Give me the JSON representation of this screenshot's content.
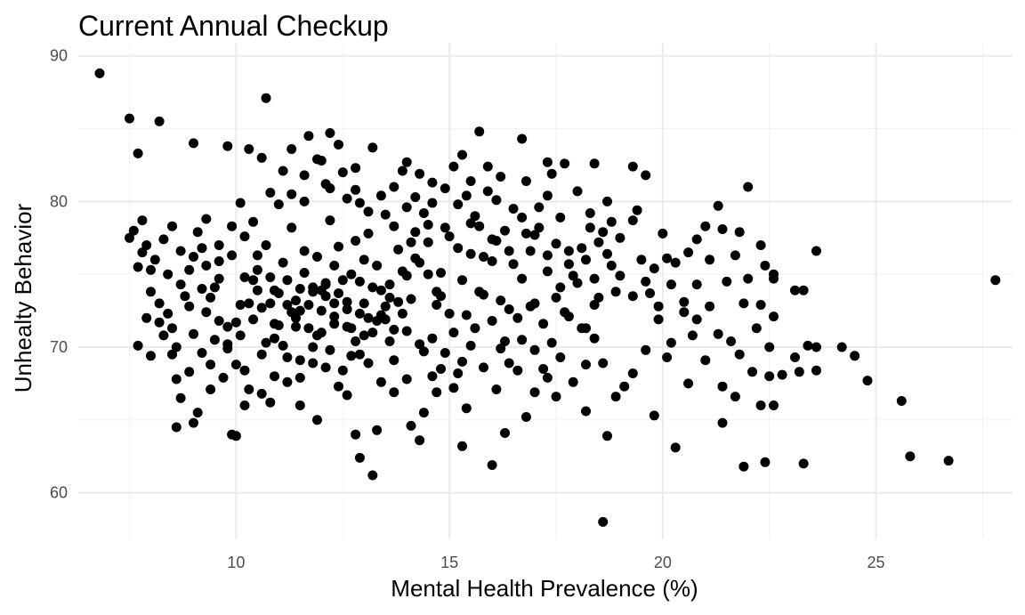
{
  "chart_data": {
    "type": "scatter",
    "title": "Current Annual Checkup",
    "xlabel": "Mental Health Prevalence (%)",
    "ylabel": "Unhealty Behavior",
    "xlim": [
      6.3,
      28.2
    ],
    "ylim": [
      56.8,
      90.9
    ],
    "x_ticks": [
      10,
      15,
      20,
      25
    ],
    "y_ticks": [
      60,
      70,
      80,
      90
    ],
    "x_tick_labels": [
      "10",
      "15",
      "20",
      "25"
    ],
    "y_tick_labels": [
      "60",
      "70",
      "80",
      "90"
    ],
    "grid": true,
    "legend": "none",
    "point_color": "#000000",
    "points": [
      [
        6.8,
        88.8
      ],
      [
        10.7,
        87.1
      ],
      [
        7.5,
        85.7
      ],
      [
        8.2,
        85.5
      ],
      [
        7.7,
        83.3
      ],
      [
        9.0,
        84.0
      ],
      [
        9.8,
        83.8
      ],
      [
        10.3,
        83.6
      ],
      [
        11.7,
        84.5
      ],
      [
        12.2,
        84.7
      ],
      [
        12.4,
        83.9
      ],
      [
        13.2,
        83.7
      ],
      [
        15.7,
        84.8
      ],
      [
        16.7,
        84.3
      ],
      [
        19.3,
        82.4
      ],
      [
        22.0,
        81.0
      ],
      [
        19.6,
        81.8
      ],
      [
        18.4,
        82.6
      ],
      [
        17.3,
        82.7
      ],
      [
        15.3,
        83.2
      ],
      [
        14.0,
        82.7
      ],
      [
        7.5,
        77.5
      ],
      [
        7.6,
        78.0
      ],
      [
        7.8,
        76.5
      ],
      [
        7.7,
        75.5
      ],
      [
        8.0,
        73.8
      ],
      [
        7.9,
        72.0
      ],
      [
        8.3,
        70.8
      ],
      [
        7.7,
        70.1
      ],
      [
        8.5,
        69.5
      ],
      [
        8.6,
        67.8
      ],
      [
        8.7,
        66.5
      ],
      [
        8.6,
        64.5
      ],
      [
        9.1,
        65.5
      ],
      [
        9.0,
        64.8
      ],
      [
        9.4,
        67.1
      ],
      [
        9.9,
        64.0
      ],
      [
        10.0,
        63.9
      ],
      [
        10.2,
        66.0
      ],
      [
        10.8,
        66.2
      ],
      [
        11.5,
        66.0
      ],
      [
        11.9,
        65.0
      ],
      [
        12.6,
        66.7
      ],
      [
        12.8,
        64.0
      ],
      [
        12.9,
        62.4
      ],
      [
        13.2,
        61.2
      ],
      [
        13.3,
        64.3
      ],
      [
        13.7,
        66.9
      ],
      [
        14.1,
        64.6
      ],
      [
        14.3,
        63.6
      ],
      [
        14.4,
        65.5
      ],
      [
        14.7,
        66.9
      ],
      [
        15.3,
        63.2
      ],
      [
        15.4,
        65.8
      ],
      [
        16.0,
        61.9
      ],
      [
        16.3,
        64.1
      ],
      [
        16.8,
        65.2
      ],
      [
        17.5,
        66.6
      ],
      [
        18.2,
        65.6
      ],
      [
        18.6,
        58.0
      ],
      [
        18.7,
        63.9
      ],
      [
        19.1,
        67.3
      ],
      [
        19.8,
        65.3
      ],
      [
        20.3,
        63.1
      ],
      [
        21.4,
        64.8
      ],
      [
        21.9,
        61.8
      ],
      [
        22.4,
        62.1
      ],
      [
        23.3,
        62.0
      ],
      [
        25.8,
        62.5
      ],
      [
        26.7,
        62.2
      ],
      [
        25.6,
        66.3
      ],
      [
        24.8,
        67.7
      ],
      [
        24.5,
        69.4
      ],
      [
        24.2,
        70.0
      ],
      [
        23.6,
        70.0
      ],
      [
        23.4,
        70.1
      ],
      [
        23.1,
        69.3
      ],
      [
        23.2,
        68.3
      ],
      [
        22.8,
        68.1
      ],
      [
        22.5,
        68.0
      ],
      [
        22.1,
        68.3
      ],
      [
        21.7,
        66.6
      ],
      [
        21.4,
        67.3
      ],
      [
        22.3,
        66.0
      ],
      [
        22.6,
        66.0
      ],
      [
        23.6,
        68.4
      ],
      [
        27.8,
        74.6
      ],
      [
        23.6,
        76.6
      ],
      [
        23.1,
        73.9
      ],
      [
        23.3,
        73.9
      ],
      [
        22.6,
        74.7
      ],
      [
        22.4,
        75.6
      ],
      [
        22.6,
        75.0
      ],
      [
        22.3,
        77.0
      ],
      [
        21.8,
        77.9
      ],
      [
        21.3,
        79.7
      ],
      [
        21.0,
        78.3
      ],
      [
        20.8,
        77.4
      ],
      [
        20.1,
        76.1
      ],
      [
        20.6,
        76.5
      ],
      [
        19.8,
        75.4
      ],
      [
        8.4,
        75.0
      ],
      [
        8.8,
        73.5
      ],
      [
        9.2,
        76.8
      ],
      [
        9.6,
        75.9
      ],
      [
        9.3,
        72.4
      ],
      [
        9.0,
        70.9
      ],
      [
        8.9,
        72.8
      ],
      [
        8.5,
        71.3
      ],
      [
        8.2,
        73.0
      ],
      [
        8.0,
        75.3
      ],
      [
        9.5,
        74.1
      ],
      [
        9.8,
        70.2
      ],
      [
        10.1,
        72.9
      ],
      [
        10.5,
        75.3
      ],
      [
        10.3,
        73.0
      ],
      [
        10.0,
        71.7
      ],
      [
        10.9,
        73.9
      ],
      [
        11.0,
        71.5
      ],
      [
        11.2,
        74.6
      ],
      [
        11.4,
        73.2
      ],
      [
        11.1,
        75.8
      ],
      [
        10.7,
        77.0
      ],
      [
        10.4,
        78.6
      ],
      [
        10.1,
        79.9
      ],
      [
        10.8,
        80.6
      ],
      [
        11.3,
        78.2
      ],
      [
        11.6,
        76.6
      ],
      [
        11.8,
        74.1
      ],
      [
        11.5,
        72.5
      ],
      [
        11.9,
        70.8
      ],
      [
        12.1,
        73.5
      ],
      [
        12.3,
        72.1
      ],
      [
        12.0,
        71.0
      ],
      [
        12.5,
        74.6
      ],
      [
        12.4,
        76.9
      ],
      [
        12.2,
        78.7
      ],
      [
        12.6,
        80.2
      ],
      [
        12.8,
        82.3
      ],
      [
        12.1,
        81.2
      ],
      [
        11.6,
        80.0
      ],
      [
        11.1,
        82.1
      ],
      [
        10.6,
        83.0
      ],
      [
        11.3,
        83.6
      ],
      [
        12.0,
        82.8
      ],
      [
        12.9,
        79.9
      ],
      [
        13.1,
        77.8
      ],
      [
        13.3,
        75.6
      ],
      [
        13.0,
        73.0
      ],
      [
        12.7,
        71.3
      ],
      [
        12.9,
        69.5
      ],
      [
        13.4,
        72.2
      ],
      [
        13.6,
        74.3
      ],
      [
        13.8,
        76.7
      ],
      [
        13.5,
        79.1
      ],
      [
        13.7,
        81.0
      ],
      [
        13.9,
        82.1
      ],
      [
        14.2,
        80.3
      ],
      [
        14.5,
        78.4
      ],
      [
        14.3,
        75.8
      ],
      [
        14.1,
        73.3
      ],
      [
        14.0,
        71.1
      ],
      [
        14.4,
        69.7
      ],
      [
        14.7,
        72.9
      ],
      [
        14.8,
        75.1
      ],
      [
        15.0,
        77.6
      ],
      [
        15.2,
        79.8
      ],
      [
        15.5,
        81.4
      ],
      [
        15.9,
        82.4
      ],
      [
        16.1,
        80.1
      ],
      [
        16.3,
        78.0
      ],
      [
        16.0,
        75.9
      ],
      [
        15.8,
        73.6
      ],
      [
        15.6,
        71.3
      ],
      [
        15.3,
        69.0
      ],
      [
        15.1,
        67.2
      ],
      [
        14.8,
        68.5
      ],
      [
        14.6,
        70.6
      ],
      [
        16.4,
        72.6
      ],
      [
        16.7,
        74.7
      ],
      [
        16.9,
        76.6
      ],
      [
        17.1,
        78.2
      ],
      [
        17.3,
        80.4
      ],
      [
        17.6,
        78.9
      ],
      [
        17.8,
        76.6
      ],
      [
        18.0,
        74.4
      ],
      [
        17.7,
        72.4
      ],
      [
        17.4,
        70.3
      ],
      [
        17.2,
        68.5
      ],
      [
        17.0,
        66.9
      ],
      [
        16.6,
        68.4
      ],
      [
        16.2,
        69.9
      ],
      [
        18.2,
        71.3
      ],
      [
        18.5,
        73.4
      ],
      [
        18.8,
        75.6
      ],
      [
        19.0,
        77.5
      ],
      [
        19.3,
        78.7
      ],
      [
        18.7,
        80.0
      ],
      [
        18.3,
        79.2
      ],
      [
        19.5,
        76.0
      ],
      [
        19.7,
        73.7
      ],
      [
        19.9,
        71.9
      ],
      [
        19.6,
        69.8
      ],
      [
        19.3,
        68.2
      ],
      [
        18.9,
        66.6
      ],
      [
        18.6,
        68.9
      ],
      [
        18.4,
        70.6
      ],
      [
        20.2,
        70.3
      ],
      [
        20.5,
        72.4
      ],
      [
        20.8,
        74.3
      ],
      [
        20.3,
        75.8
      ],
      [
        20.0,
        77.8
      ],
      [
        19.4,
        79.4
      ],
      [
        20.7,
        70.8
      ],
      [
        21.1,
        72.8
      ],
      [
        21.5,
        74.5
      ],
      [
        21.9,
        73.0
      ],
      [
        21.3,
        70.9
      ],
      [
        21.0,
        69.1
      ],
      [
        20.6,
        67.5
      ],
      [
        20.1,
        69.3
      ],
      [
        21.6,
        70.4
      ],
      [
        22.2,
        71.3
      ],
      [
        22.5,
        70.0
      ],
      [
        21.8,
        69.5
      ],
      [
        9.4,
        68.8
      ],
      [
        9.7,
        67.9
      ],
      [
        10.2,
        68.4
      ],
      [
        10.6,
        69.5
      ],
      [
        10.9,
        70.6
      ],
      [
        11.2,
        69.3
      ],
      [
        11.5,
        67.9
      ],
      [
        11.8,
        68.9
      ],
      [
        12.2,
        69.8
      ],
      [
        12.5,
        68.4
      ],
      [
        12.8,
        70.4
      ],
      [
        13.1,
        68.9
      ],
      [
        13.4,
        67.6
      ],
      [
        13.7,
        69.1
      ],
      [
        14.0,
        67.8
      ],
      [
        14.3,
        70.2
      ],
      [
        14.6,
        68.0
      ],
      [
        14.9,
        69.6
      ],
      [
        15.2,
        68.2
      ],
      [
        15.5,
        70.1
      ],
      [
        15.8,
        68.6
      ],
      [
        16.1,
        67.1
      ],
      [
        16.4,
        68.9
      ],
      [
        16.7,
        70.5
      ],
      [
        17.0,
        69.8
      ],
      [
        17.3,
        67.9
      ],
      [
        17.6,
        69.3
      ],
      [
        17.9,
        67.6
      ],
      [
        18.2,
        68.8
      ],
      [
        10.5,
        76.3
      ],
      [
        10.8,
        74.8
      ],
      [
        11.0,
        73.7
      ],
      [
        11.3,
        72.4
      ],
      [
        11.6,
        75.1
      ],
      [
        11.9,
        76.2
      ],
      [
        12.1,
        74.4
      ],
      [
        12.3,
        75.6
      ],
      [
        12.6,
        73.1
      ],
      [
        12.8,
        77.3
      ],
      [
        13.0,
        76.0
      ],
      [
        13.2,
        74.1
      ],
      [
        13.5,
        72.8
      ],
      [
        13.7,
        71.2
      ],
      [
        14.0,
        74.9
      ],
      [
        14.2,
        76.1
      ],
      [
        14.5,
        77.2
      ],
      [
        14.7,
        73.8
      ],
      [
        15.0,
        72.3
      ],
      [
        15.3,
        74.6
      ],
      [
        15.5,
        76.4
      ],
      [
        15.7,
        78.3
      ],
      [
        16.0,
        77.4
      ],
      [
        16.2,
        73.2
      ],
      [
        16.5,
        75.7
      ],
      [
        16.8,
        77.8
      ],
      [
        17.0,
        73.0
      ],
      [
        17.3,
        75.2
      ],
      [
        17.5,
        77.1
      ],
      [
        17.8,
        75.7
      ],
      [
        18.1,
        76.8
      ],
      [
        18.4,
        72.9
      ],
      [
        18.6,
        77.9
      ],
      [
        18.9,
        73.8
      ],
      [
        9.1,
        77.9
      ],
      [
        9.3,
        78.8
      ],
      [
        9.6,
        77.0
      ],
      [
        9.9,
        78.3
      ],
      [
        10.2,
        77.6
      ],
      [
        10.4,
        74.6
      ],
      [
        10.6,
        72.7
      ],
      [
        10.9,
        71.6
      ],
      [
        11.1,
        70.1
      ],
      [
        11.4,
        71.4
      ],
      [
        11.7,
        72.9
      ],
      [
        12.0,
        73.9
      ],
      [
        12.3,
        71.6
      ],
      [
        12.6,
        72.6
      ],
      [
        12.9,
        74.5
      ],
      [
        13.1,
        72.0
      ],
      [
        13.4,
        73.9
      ],
      [
        13.6,
        70.4
      ],
      [
        13.9,
        72.3
      ],
      [
        14.1,
        77.2
      ],
      [
        14.4,
        79.2
      ],
      [
        14.6,
        81.3
      ],
      [
        14.9,
        80.9
      ],
      [
        15.1,
        82.4
      ],
      [
        15.4,
        80.4
      ],
      [
        15.6,
        79.0
      ],
      [
        15.9,
        80.7
      ],
      [
        16.2,
        81.7
      ],
      [
        16.5,
        79.5
      ],
      [
        16.8,
        81.4
      ],
      [
        17.1,
        79.6
      ],
      [
        17.4,
        81.9
      ],
      [
        17.7,
        82.6
      ],
      [
        18.0,
        80.7
      ],
      [
        18.3,
        78.2
      ],
      [
        7.8,
        78.7
      ],
      [
        7.9,
        77.0
      ],
      [
        8.1,
        76.0
      ],
      [
        8.3,
        77.4
      ],
      [
        8.5,
        78.3
      ],
      [
        8.7,
        76.6
      ],
      [
        8.9,
        75.3
      ],
      [
        9.2,
        74.0
      ],
      [
        9.4,
        73.4
      ],
      [
        9.6,
        71.8
      ],
      [
        9.8,
        69.9
      ],
      [
        10.0,
        68.8
      ],
      [
        10.3,
        67.1
      ],
      [
        10.6,
        66.8
      ],
      [
        10.9,
        68.0
      ],
      [
        11.2,
        67.6
      ],
      [
        11.5,
        69.1
      ],
      [
        11.8,
        70.0
      ],
      [
        12.1,
        68.6
      ],
      [
        12.4,
        67.3
      ],
      [
        12.7,
        69.4
      ],
      [
        13.0,
        70.8
      ],
      [
        13.3,
        71.8
      ],
      [
        13.6,
        73.4
      ],
      [
        13.9,
        75.2
      ],
      [
        14.2,
        77.9
      ],
      [
        14.5,
        75.0
      ],
      [
        14.8,
        73.5
      ],
      [
        15.1,
        71.0
      ],
      [
        15.4,
        72.2
      ],
      [
        15.7,
        73.8
      ],
      [
        16.0,
        71.8
      ],
      [
        16.3,
        70.4
      ],
      [
        16.6,
        72.0
      ],
      [
        16.9,
        72.8
      ],
      [
        17.2,
        71.6
      ],
      [
        17.5,
        73.4
      ],
      [
        17.8,
        72.1
      ],
      [
        18.1,
        71.3
      ],
      [
        18.4,
        74.7
      ],
      [
        18.7,
        76.4
      ],
      [
        19.0,
        74.9
      ],
      [
        19.3,
        73.5
      ],
      [
        19.6,
        74.5
      ],
      [
        19.9,
        72.8
      ],
      [
        20.2,
        74.3
      ],
      [
        20.5,
        73.1
      ],
      [
        20.8,
        71.9
      ],
      [
        21.1,
        76.0
      ],
      [
        21.4,
        78.1
      ],
      [
        21.7,
        76.3
      ],
      [
        22.0,
        74.7
      ],
      [
        22.3,
        72.9
      ],
      [
        22.6,
        72.1
      ],
      [
        11.0,
        79.8
      ],
      [
        11.3,
        80.5
      ],
      [
        11.6,
        81.8
      ],
      [
        11.9,
        82.9
      ],
      [
        12.2,
        80.9
      ],
      [
        12.5,
        82.0
      ],
      [
        12.8,
        80.8
      ],
      [
        13.1,
        79.3
      ],
      [
        13.4,
        80.4
      ],
      [
        13.7,
        78.3
      ],
      [
        14.0,
        79.6
      ],
      [
        14.3,
        81.9
      ],
      [
        14.6,
        79.9
      ],
      [
        14.9,
        78.2
      ],
      [
        15.2,
        76.8
      ],
      [
        15.5,
        78.5
      ],
      [
        15.8,
        76.2
      ],
      [
        16.1,
        77.3
      ],
      [
        16.4,
        76.6
      ],
      [
        16.7,
        78.9
      ],
      [
        17.0,
        77.7
      ],
      [
        17.3,
        76.3
      ],
      [
        17.6,
        74.1
      ],
      [
        17.9,
        74.9
      ],
      [
        18.2,
        76.0
      ],
      [
        18.5,
        77.2
      ],
      [
        18.8,
        78.6
      ],
      [
        11.4,
        72.0
      ],
      [
        11.7,
        71.3
      ],
      [
        12.0,
        72.5
      ],
      [
        12.3,
        73.0
      ],
      [
        12.6,
        71.4
      ],
      [
        12.9,
        72.3
      ],
      [
        13.2,
        71.0
      ],
      [
        13.5,
        71.9
      ],
      [
        13.8,
        73.1
      ],
      [
        11.8,
        73.8
      ],
      [
        12.1,
        74.3
      ],
      [
        12.4,
        73.7
      ],
      [
        12.7,
        75.0
      ],
      [
        11.5,
        74.0
      ],
      [
        11.2,
        72.9
      ],
      [
        10.8,
        73.0
      ],
      [
        10.5,
        73.9
      ],
      [
        10.2,
        74.8
      ],
      [
        9.9,
        76.3
      ],
      [
        9.6,
        74.7
      ],
      [
        9.3,
        75.6
      ],
      [
        9.0,
        76.2
      ],
      [
        8.7,
        74.3
      ],
      [
        8.4,
        72.3
      ],
      [
        8.2,
        71.7
      ],
      [
        8.0,
        69.4
      ],
      [
        8.6,
        70.0
      ],
      [
        8.9,
        68.3
      ],
      [
        9.2,
        69.6
      ],
      [
        9.5,
        70.5
      ],
      [
        9.8,
        71.4
      ],
      [
        10.1,
        70.8
      ],
      [
        10.4,
        71.9
      ],
      [
        10.7,
        70.3
      ]
    ]
  }
}
